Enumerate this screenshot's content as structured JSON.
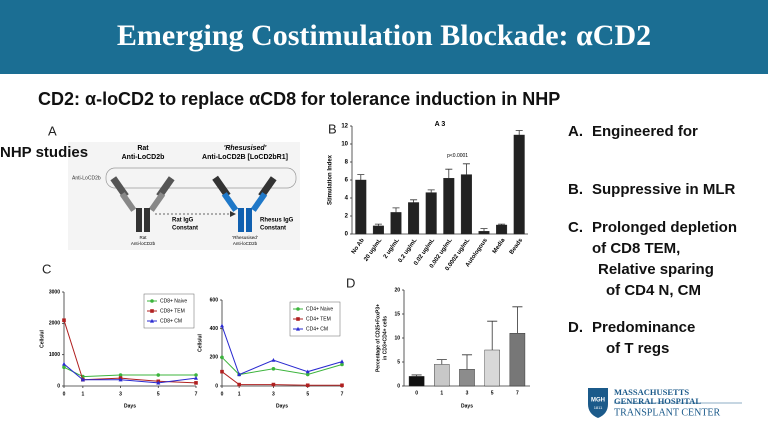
{
  "title": "Emerging Costimulation Blockade: αCD2",
  "subtitle": "CD2: α-loCD2 to replace αCD8 for tolerance induction in NHP",
  "panel_labels": [
    "A",
    "B",
    "C",
    "D"
  ],
  "bullets": [
    {
      "letter": "A.",
      "lines": [
        "Engineered for",
        "NHP studies"
      ]
    },
    {
      "letter": "B.",
      "lines": [
        "Suppressive in MLR"
      ]
    },
    {
      "letter": "C.",
      "lines": [
        "Prolonged depletion",
        "of CD8 TEM,",
        "Relative sparing",
        "of CD4 N, CM"
      ]
    },
    {
      "letter": "D.",
      "lines": [
        "Predominance",
        "of T regs"
      ]
    }
  ],
  "diagram": {
    "side_label": "Anti-LoCD2b",
    "left_title": "Rat",
    "left_subtitle": "Anti-LoCD2b",
    "right_title": "'Rhesusised'",
    "right_subtitle": "Anti-LoCD2B [LoCD2bR1]",
    "left_constant": [
      "Rat IgG",
      "Constant"
    ],
    "right_constant": [
      "Rhesus IgG",
      "Constant"
    ],
    "left_caption": [
      "Rat",
      "Anti-loCD2b"
    ],
    "right_caption": [
      "'Rhesusised'",
      "Anti-loCD2b"
    ]
  },
  "logo": {
    "mark": "MGH",
    "year": "1811",
    "lines": [
      "MASSACHUSETTS",
      "GENERAL HOSPITAL"
    ],
    "center": "TRANSPLANT CENTER"
  },
  "chart_data": [
    {
      "type": "bar",
      "title": "A 3",
      "y_label": "Stimulation Index",
      "categories": [
        "No Ab",
        "20 ug/mL",
        "2 ug/mL",
        "0.2 ug/mL",
        "0.02 ug/mL",
        "0.002 ug/mL",
        "0.0002 ug/mL",
        "Autologous",
        "Media",
        "Beads"
      ],
      "values": [
        6,
        0.9,
        2.4,
        3.5,
        4.6,
        6.2,
        6.6,
        0.3,
        1,
        11
      ],
      "errors": [
        0.6,
        0.2,
        0.5,
        0.3,
        0.3,
        1,
        1.2,
        0.3,
        0.1,
        0.5
      ],
      "color": "#222222",
      "ylim": [
        0,
        12
      ],
      "yticks": [
        0,
        2,
        4,
        6,
        8,
        10,
        12
      ],
      "annotation": "p<0.0001"
    },
    {
      "type": "line",
      "y_label": "Cells/ul",
      "x_label": "Days",
      "x": [
        0,
        1,
        3,
        5,
        7
      ],
      "xlim": [
        0,
        7
      ],
      "xticks": [
        0,
        1,
        3,
        5,
        7
      ],
      "ylim": [
        0,
        3000
      ],
      "yticks": [
        0,
        1000,
        2000,
        3000
      ],
      "series": [
        {
          "name": "CD8+ Naive",
          "color": "#3cb43c",
          "values": [
            600,
            300,
            350,
            350,
            350
          ]
        },
        {
          "name": "CD8+ TEM",
          "color": "#b02020",
          "values": [
            2100,
            200,
            250,
            150,
            100
          ]
        },
        {
          "name": "CD8+ CM",
          "color": "#2a2ad0",
          "values": [
            700,
            200,
            200,
            100,
            250
          ]
        }
      ]
    },
    {
      "type": "line",
      "y_label": "Cells/ul",
      "x_label": "Days",
      "x": [
        0,
        1,
        3,
        5,
        7
      ],
      "xlim": [
        0,
        7
      ],
      "xticks": [
        0,
        1,
        3,
        5,
        7
      ],
      "ylim": [
        0,
        600
      ],
      "yticks": [
        0,
        200,
        400,
        600
      ],
      "series": [
        {
          "name": "CD4+ Naive",
          "color": "#3cb43c",
          "values": [
            200,
            80,
            120,
            80,
            150
          ]
        },
        {
          "name": "CD4+ TEM",
          "color": "#b02020",
          "values": [
            100,
            10,
            10,
            5,
            5
          ]
        },
        {
          "name": "CD4+ CM",
          "color": "#2a2ad0",
          "values": [
            420,
            80,
            180,
            100,
            170
          ]
        }
      ]
    },
    {
      "type": "bar",
      "y_label": [
        "Percentage of CD25+FoxP3+",
        "in CD3+CD4+ cells"
      ],
      "x_label": "Days",
      "categories": [
        "0",
        "1",
        "3",
        "5",
        "7"
      ],
      "values": [
        2,
        4.5,
        3.5,
        7.5,
        11
      ],
      "errors": [
        0.3,
        1,
        3,
        6,
        5.5
      ],
      "colors": [
        "#111111",
        "#c8c8c8",
        "#8c8c8c",
        "#d8d8d8",
        "#777777"
      ],
      "ylim": [
        0,
        20
      ],
      "yticks": [
        0,
        5,
        10,
        15,
        20
      ]
    }
  ]
}
